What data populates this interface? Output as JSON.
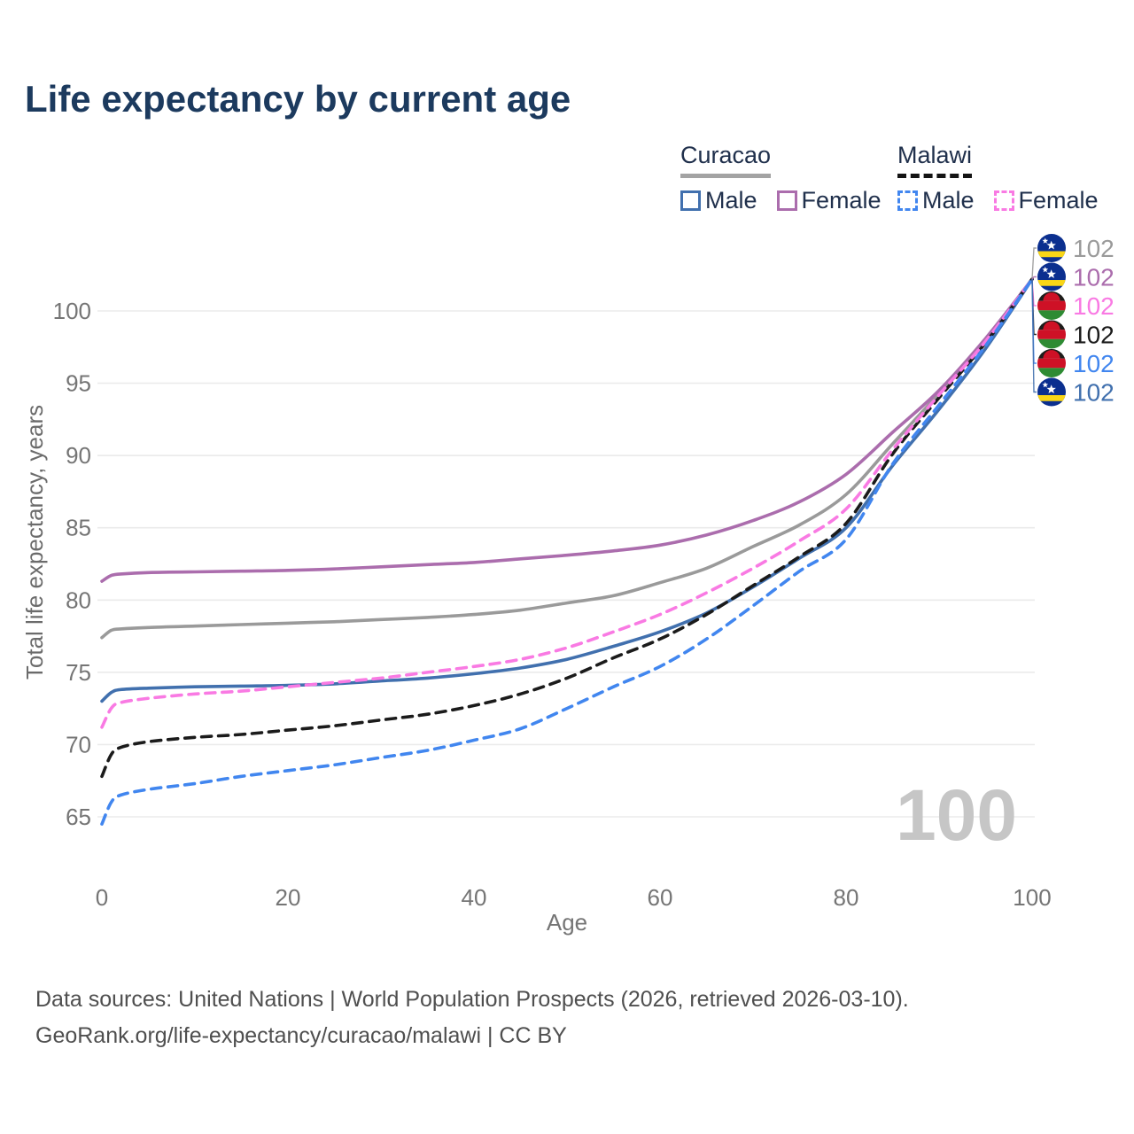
{
  "title": "Life expectancy by current age",
  "legend": {
    "groups": [
      {
        "label": "Curacao",
        "line_style": "solid",
        "underline_color": "#a3a3a3",
        "items": [
          {
            "label": "Male",
            "color": "#4170ae",
            "dashed": false
          },
          {
            "label": "Female",
            "color": "#ab6dad",
            "dashed": false
          }
        ]
      },
      {
        "label": "Malawi",
        "line_style": "dashed",
        "underline_color": "#141414",
        "items": [
          {
            "label": "Male",
            "color": "#4186ef",
            "dashed": true
          },
          {
            "label": "Female",
            "color": "#f97ae3",
            "dashed": true
          }
        ]
      }
    ]
  },
  "chart_data": {
    "type": "line",
    "title": "Life expectancy by current age",
    "xlabel": "Age",
    "ylabel": "Total life expectancy, years",
    "xlim": [
      0,
      100
    ],
    "ylim": [
      64,
      103
    ],
    "x_ticks": [
      0,
      20,
      40,
      60,
      80,
      100
    ],
    "y_ticks": [
      65,
      70,
      75,
      80,
      85,
      90,
      95,
      100
    ],
    "grid": "horizontal",
    "age_watermark": "100",
    "x": [
      0,
      1,
      2,
      5,
      10,
      15,
      20,
      25,
      30,
      35,
      40,
      45,
      50,
      55,
      60,
      65,
      70,
      75,
      80,
      85,
      90,
      95,
      100
    ],
    "series": [
      {
        "name": "Curacao Total",
        "country": "curacao",
        "sex": "Total",
        "color": "#9a9a9a",
        "dashed": false,
        "end_label": "102",
        "values": [
          77.4,
          77.9,
          78.0,
          78.1,
          78.2,
          78.3,
          78.4,
          78.5,
          78.65,
          78.8,
          79.0,
          79.3,
          79.8,
          80.3,
          81.2,
          82.2,
          83.7,
          85.2,
          87.3,
          90.8,
          94.3,
          98.0,
          102.2
        ]
      },
      {
        "name": "Curacao Female",
        "country": "curacao",
        "sex": "Female",
        "color": "#ab6dad",
        "dashed": false,
        "end_label": "102",
        "values": [
          81.3,
          81.7,
          81.8,
          81.9,
          81.95,
          82.0,
          82.05,
          82.15,
          82.3,
          82.45,
          82.6,
          82.85,
          83.1,
          83.4,
          83.8,
          84.5,
          85.5,
          86.8,
          88.7,
          91.6,
          94.5,
          98.1,
          102.2
        ]
      },
      {
        "name": "Curacao Male",
        "country": "curacao",
        "sex": "Male",
        "color": "#4170ae",
        "dashed": false,
        "end_label": "102",
        "values": [
          73.0,
          73.6,
          73.8,
          73.9,
          74.0,
          74.05,
          74.1,
          74.2,
          74.4,
          74.6,
          74.9,
          75.3,
          75.9,
          76.8,
          77.8,
          79.1,
          80.9,
          82.9,
          85.0,
          89.3,
          93.2,
          97.4,
          102.2
        ]
      },
      {
        "name": "Malawi Total",
        "country": "malawi",
        "sex": "Total",
        "color": "#1b1b1b",
        "dashed": true,
        "end_label": "102",
        "values": [
          67.8,
          69.3,
          69.8,
          70.2,
          70.5,
          70.7,
          71.0,
          71.3,
          71.7,
          72.1,
          72.7,
          73.5,
          74.6,
          76.0,
          77.3,
          79.0,
          81.0,
          83.0,
          85.3,
          90.1,
          94.0,
          97.8,
          102.2
        ]
      },
      {
        "name": "Malawi Female",
        "country": "malawi",
        "sex": "Female",
        "color": "#f97ae3",
        "dashed": true,
        "end_label": "102",
        "values": [
          71.2,
          72.5,
          72.9,
          73.2,
          73.5,
          73.7,
          74.0,
          74.3,
          74.6,
          75.0,
          75.4,
          75.9,
          76.7,
          77.8,
          79.0,
          80.5,
          82.2,
          84.1,
          86.3,
          90.4,
          94.2,
          97.9,
          102.2
        ]
      },
      {
        "name": "Malawi Male",
        "country": "malawi",
        "sex": "Male",
        "color": "#4186ef",
        "dashed": true,
        "end_label": "102",
        "values": [
          64.5,
          66.0,
          66.5,
          66.9,
          67.3,
          67.8,
          68.2,
          68.6,
          69.1,
          69.6,
          70.3,
          71.1,
          72.5,
          74.0,
          75.4,
          77.3,
          79.6,
          82.0,
          84.2,
          89.4,
          93.5,
          97.6,
          102.2
        ]
      }
    ],
    "end_labels": [
      {
        "series": "Curacao Total",
        "flag": "curacao",
        "text": "102",
        "color": "#9a9a9a"
      },
      {
        "series": "Curacao Female",
        "flag": "curacao",
        "text": "102",
        "color": "#ab6dad"
      },
      {
        "series": "Malawi Female",
        "flag": "malawi",
        "text": "102",
        "color": "#f97ae3"
      },
      {
        "series": "Malawi Total",
        "flag": "malawi",
        "text": "102",
        "color": "#1b1b1b"
      },
      {
        "series": "Malawi Male",
        "flag": "malawi",
        "text": "102",
        "color": "#4186ef"
      },
      {
        "series": "Curacao Male",
        "flag": "curacao",
        "text": "102",
        "color": "#4170ae"
      }
    ],
    "flag_colors": {
      "curacao": {
        "field": "#0b2f8f",
        "stripe": "#f9d616",
        "star": "#ffffff"
      },
      "malawi": {
        "top": "#1d1c1a",
        "middle": "#ce1126",
        "bottom": "#2e8b33",
        "sun": "#ce1126"
      }
    }
  },
  "footer": {
    "line1": "Data sources: United Nations | World Population Prospects (2026, retrieved 2026-03-10).",
    "line2": "GeoRank.org/life-expectancy/curacao/malawi | CC BY"
  }
}
